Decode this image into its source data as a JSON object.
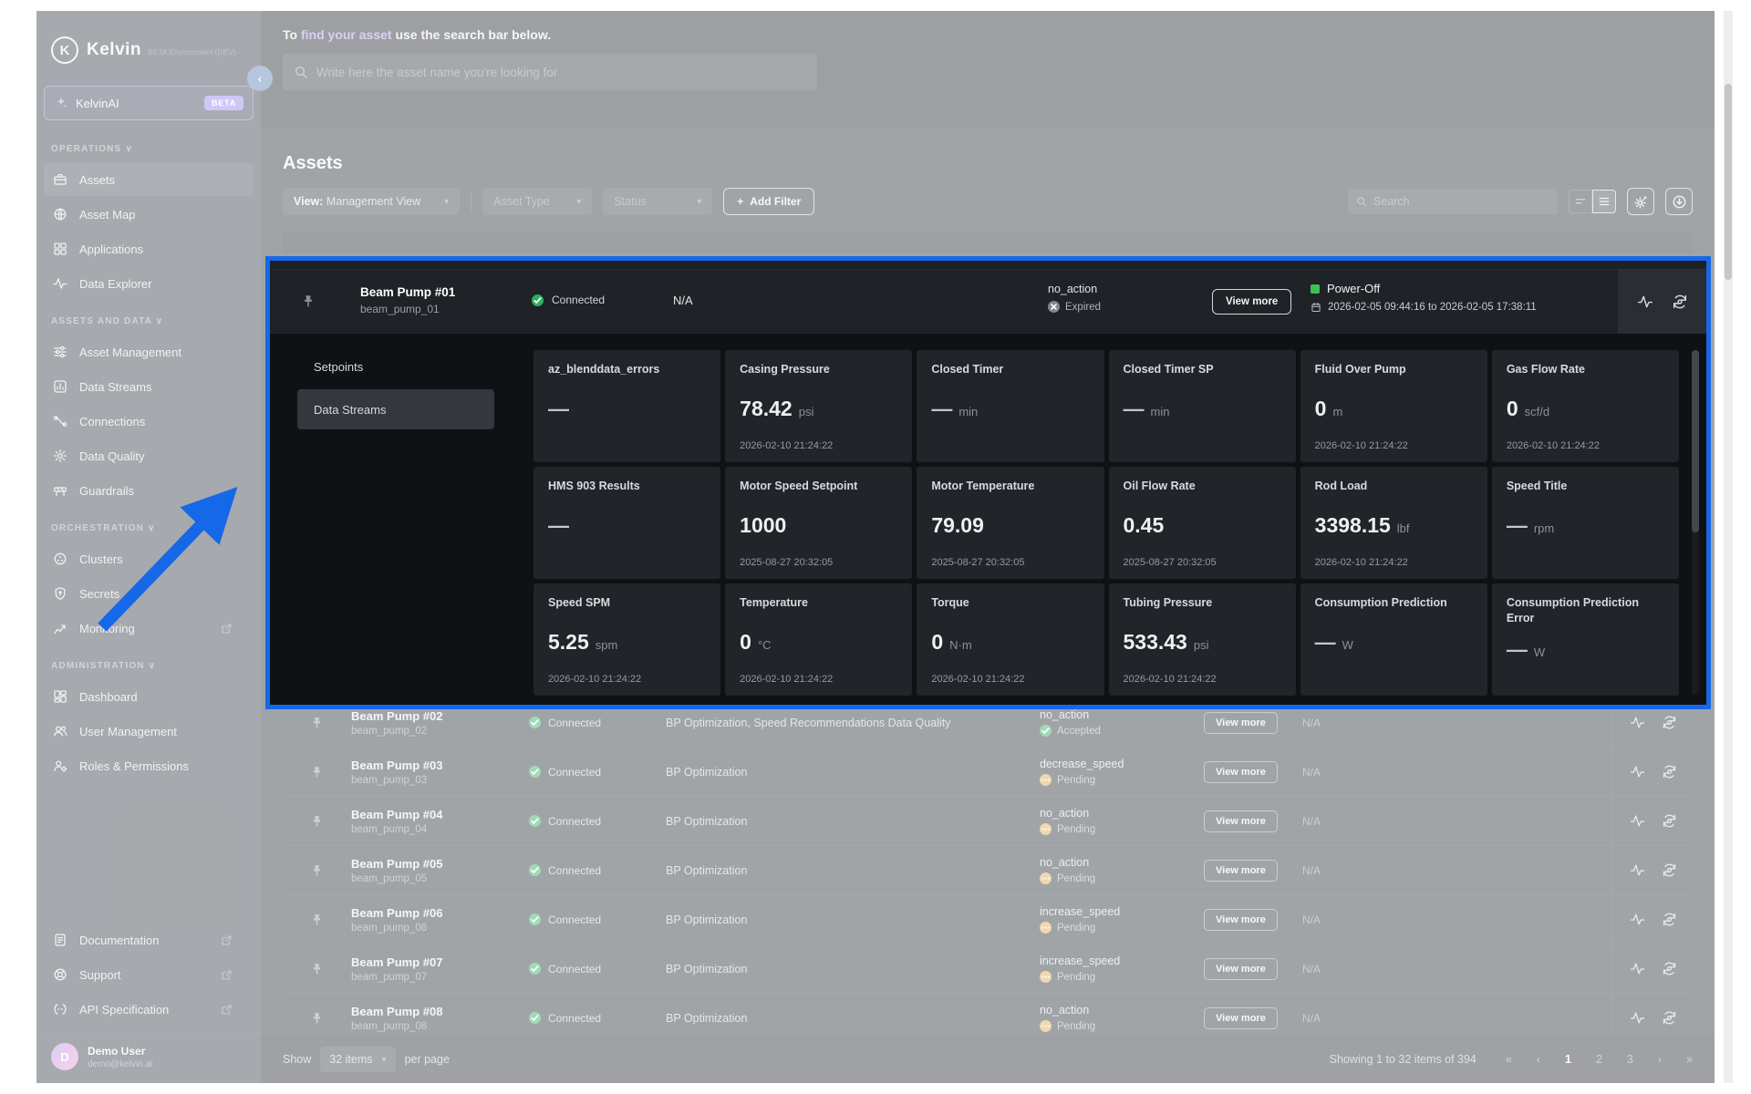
{
  "brand": {
    "name": "Kelvin",
    "env_note": "BETA Environment (DEV)",
    "logo_letter": "K"
  },
  "sidebar": {
    "kelvinai": {
      "label": "KelvinAI",
      "badge": "BETA"
    },
    "sections": [
      {
        "label": "OPERATIONS",
        "items": [
          {
            "label": "Assets",
            "icon": "briefcase",
            "active": true
          },
          {
            "label": "Asset Map",
            "icon": "globe"
          },
          {
            "label": "Applications",
            "icon": "apps"
          },
          {
            "label": "Data Explorer",
            "icon": "waveform"
          }
        ]
      },
      {
        "label": "ASSETS AND DATA",
        "items": [
          {
            "label": "Asset Management",
            "icon": "asset-management"
          },
          {
            "label": "Data Streams",
            "icon": "bar-chart"
          },
          {
            "label": "Connections",
            "icon": "connections"
          },
          {
            "label": "Data Quality",
            "icon": "gear"
          },
          {
            "label": "Guardrails",
            "icon": "barrier"
          }
        ]
      },
      {
        "label": "ORCHESTRATION",
        "items": [
          {
            "label": "Clusters",
            "icon": "cluster"
          },
          {
            "label": "Secrets",
            "icon": "shield"
          },
          {
            "label": "Monitoring",
            "icon": "monitoring",
            "external": true
          }
        ]
      },
      {
        "label": "ADMINISTRATION",
        "items": [
          {
            "label": "Dashboard",
            "icon": "dashboard"
          },
          {
            "label": "User Management",
            "icon": "users"
          },
          {
            "label": "Roles & Permissions",
            "icon": "user-gear"
          }
        ]
      }
    ],
    "footer_links": [
      {
        "label": "Documentation",
        "icon": "document",
        "external": true
      },
      {
        "label": "Support",
        "icon": "support",
        "external": true
      },
      {
        "label": "API Specification",
        "icon": "api",
        "external": true
      }
    ],
    "user": {
      "initial": "D",
      "name": "Demo User",
      "email": "demo@kelvin.ai"
    }
  },
  "banner": {
    "prefix": "To",
    "link": "find your asset",
    "suffix": "use the search bar below.",
    "search_placeholder": "Write here the asset name you're looking for"
  },
  "toolbar": {
    "title": "Assets",
    "view_filter_label": "View:",
    "view_filter_value": "Management View",
    "asset_type": "Asset Type",
    "status": "Status",
    "add_filter": "Add Filter",
    "search_placeholder": "Search"
  },
  "expanded_row": {
    "name": "Beam Pump #01",
    "id": "beam_pump_01",
    "connection": "Connected",
    "applications": "N/A",
    "action": "no_action",
    "action_status": "Expired",
    "view_more": "View more",
    "control_state": "Power-Off",
    "schedule": "2026-02-05 09:44:16 to 2026-02-05 17:38:11",
    "tabs": [
      {
        "label": "Setpoints",
        "active": false
      },
      {
        "label": "Data Streams",
        "active": true
      }
    ],
    "cards": [
      {
        "title": "az_blenddata_errors",
        "value": "—",
        "unit": "",
        "timestamp": ""
      },
      {
        "title": "Casing Pressure",
        "value": "78.42",
        "unit": "psi",
        "timestamp": "2026-02-10 21:24:22"
      },
      {
        "title": "Closed Timer",
        "value": "—",
        "unit": "min",
        "timestamp": ""
      },
      {
        "title": "Closed Timer SP",
        "value": "—",
        "unit": "min",
        "timestamp": ""
      },
      {
        "title": "Fluid Over Pump",
        "value": "0",
        "unit": "m",
        "timestamp": "2026-02-10 21:24:22"
      },
      {
        "title": "Gas Flow Rate",
        "value": "0",
        "unit": "scf/d",
        "timestamp": "2026-02-10 21:24:22"
      },
      {
        "title": "HMS 903 Results",
        "value": "—",
        "unit": "",
        "timestamp": ""
      },
      {
        "title": "Motor Speed Setpoint",
        "value": "1000",
        "unit": "",
        "timestamp": "2025-08-27 20:32:05"
      },
      {
        "title": "Motor Temperature",
        "value": "79.09",
        "unit": "",
        "timestamp": "2025-08-27 20:32:05"
      },
      {
        "title": "Oil Flow Rate",
        "value": "0.45",
        "unit": "",
        "timestamp": "2025-08-27 20:32:05"
      },
      {
        "title": "Rod Load",
        "value": "3398.15",
        "unit": "lbf",
        "timestamp": "2026-02-10 21:24:22"
      },
      {
        "title": "Speed Title",
        "value": "—",
        "unit": "rpm",
        "timestamp": ""
      },
      {
        "title": "Speed SPM",
        "value": "5.25",
        "unit": "spm",
        "timestamp": "2026-02-10 21:24:22"
      },
      {
        "title": "Temperature",
        "value": "0",
        "unit": "°C",
        "timestamp": "2026-02-10 21:24:22"
      },
      {
        "title": "Torque",
        "value": "0",
        "unit": "N·m",
        "timestamp": "2026-02-10 21:24:22"
      },
      {
        "title": "Tubing Pressure",
        "value": "533.43",
        "unit": "psi",
        "timestamp": "2026-02-10 21:24:22"
      },
      {
        "title": "Consumption Prediction",
        "value": "—",
        "unit": "W",
        "timestamp": ""
      },
      {
        "title": "Consumption Prediction Error",
        "value": "—",
        "unit": "W",
        "timestamp": ""
      }
    ]
  },
  "table_rows": [
    {
      "name": "Beam Pump #02",
      "id": "beam_pump_02",
      "connection": "Connected",
      "applications": "BP Optimization, Speed Recommendations Data Quality",
      "action": "no_action",
      "status": "Accepted",
      "status_type": "accepted",
      "view_more": "View more",
      "schedules": "N/A"
    },
    {
      "name": "Beam Pump #03",
      "id": "beam_pump_03",
      "connection": "Connected",
      "applications": "BP Optimization",
      "action": "decrease_speed",
      "status": "Pending",
      "status_type": "pending",
      "view_more": "View more",
      "schedules": "N/A"
    },
    {
      "name": "Beam Pump #04",
      "id": "beam_pump_04",
      "connection": "Connected",
      "applications": "BP Optimization",
      "action": "no_action",
      "status": "Pending",
      "status_type": "pending",
      "view_more": "View more",
      "schedules": "N/A"
    },
    {
      "name": "Beam Pump #05",
      "id": "beam_pump_05",
      "connection": "Connected",
      "applications": "BP Optimization",
      "action": "no_action",
      "status": "Pending",
      "status_type": "pending",
      "view_more": "View more",
      "schedules": "N/A"
    },
    {
      "name": "Beam Pump #06",
      "id": "beam_pump_06",
      "connection": "Connected",
      "applications": "BP Optimization",
      "action": "increase_speed",
      "status": "Pending",
      "status_type": "pending",
      "view_more": "View more",
      "schedules": "N/A"
    },
    {
      "name": "Beam Pump #07",
      "id": "beam_pump_07",
      "connection": "Connected",
      "applications": "BP Optimization",
      "action": "increase_speed",
      "status": "Pending",
      "status_type": "pending",
      "view_more": "View more",
      "schedules": "N/A"
    },
    {
      "name": "Beam Pump #08",
      "id": "beam_pump_08",
      "connection": "Connected",
      "applications": "BP Optimization",
      "action": "no_action",
      "status": "Pending",
      "status_type": "pending",
      "view_more": "View more",
      "schedules": "N/A"
    }
  ],
  "pagination": {
    "show_label": "Show",
    "items_value": "32 items",
    "per_page_label": "per page",
    "summary": "Showing 1 to 32 items of 394",
    "pages": [
      "1",
      "2",
      "3"
    ],
    "active_page": "1"
  },
  "colors": {
    "highlight_blue": "#1568e8",
    "status_green": "#2fae62",
    "status_amber": "#d9a94e",
    "status_grey": "#80868f",
    "power_green": "#3fbf54",
    "link_purple": "#a99cf2"
  }
}
